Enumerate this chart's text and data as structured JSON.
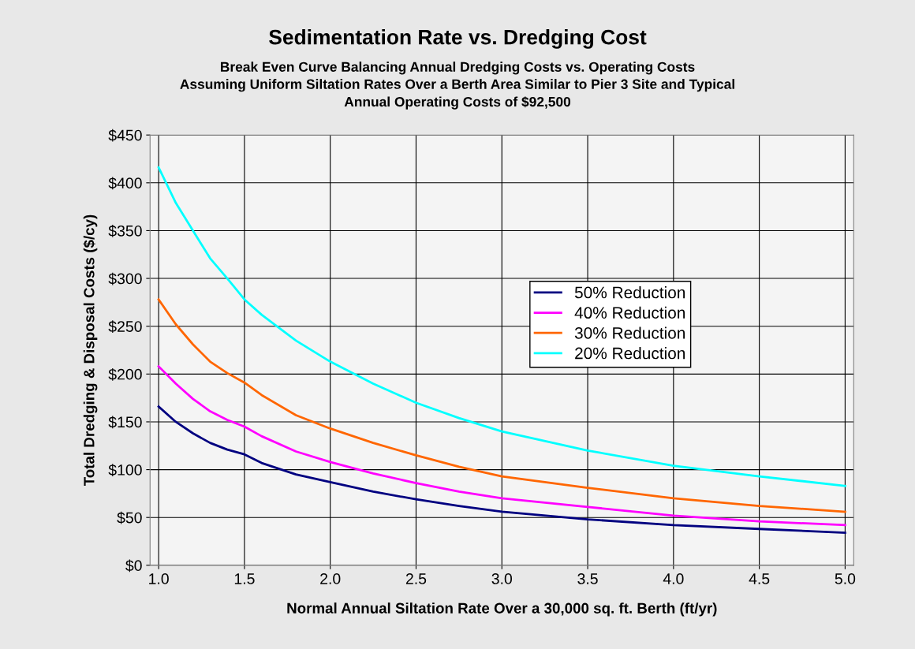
{
  "chart_data": {
    "type": "line",
    "title": "Sedimentation Rate vs. Dredging Cost",
    "subtitle": "Break Even Curve Balancing Annual Dredging Costs vs. Operating Costs\nAssuming Uniform Siltation Rates Over a Berth Area Similar to Pier 3 Site and Typical\nAnnual Operating Costs of $92,500",
    "xlabel": "Normal Annual Siltation Rate Over a 30,000 sq. ft. Berth (ft/yr)",
    "ylabel": "Total Dredging & Disposal Costs ($/cy)",
    "x": [
      1.0,
      1.1,
      1.2,
      1.3,
      1.4,
      1.5,
      1.6,
      1.8,
      2.0,
      2.25,
      2.5,
      2.75,
      3.0,
      3.5,
      4.0,
      4.5,
      5.0
    ],
    "series": [
      {
        "name": "50% Reduction",
        "color": "#000080",
        "values": [
          166,
          150,
          138,
          128,
          121,
          116,
          107,
          95,
          87,
          77,
          69,
          62,
          56,
          48,
          42,
          38,
          34
        ]
      },
      {
        "name": "40% Reduction",
        "color": "#ff00ff",
        "values": [
          208,
          190,
          174,
          161,
          152,
          145,
          135,
          119,
          108,
          96,
          86,
          77,
          70,
          61,
          52,
          46,
          42
        ]
      },
      {
        "name": "30% Reduction",
        "color": "#ff6600",
        "values": [
          278,
          252,
          231,
          213,
          201,
          191,
          178,
          157,
          143,
          128,
          115,
          103,
          93,
          81,
          70,
          62,
          56
        ]
      },
      {
        "name": "20% Reduction",
        "color": "#00ffff",
        "values": [
          416,
          379,
          350,
          321,
          300,
          278,
          262,
          235,
          213,
          190,
          170,
          154,
          140,
          120,
          104,
          93,
          83
        ]
      }
    ],
    "xlim": [
      0.95,
      5.05
    ],
    "xticks": [
      {
        "value": 1,
        "label": "1.0"
      },
      {
        "value": 1.5,
        "label": "1.5"
      },
      {
        "value": 2,
        "label": "2.0"
      },
      {
        "value": 2.5,
        "label": "2.5"
      },
      {
        "value": 3,
        "label": "3.0"
      },
      {
        "value": 3.5,
        "label": "3.5"
      },
      {
        "value": 4,
        "label": "4.0"
      },
      {
        "value": 4.5,
        "label": "4.5"
      },
      {
        "value": 5,
        "label": "5.0"
      }
    ],
    "ylim": [
      0,
      450
    ],
    "yticks": [
      {
        "value": 0,
        "label": "$0"
      },
      {
        "value": 50,
        "label": "$50"
      },
      {
        "value": 100,
        "label": "$100"
      },
      {
        "value": 150,
        "label": "$150"
      },
      {
        "value": 200,
        "label": "$200"
      },
      {
        "value": 250,
        "label": "$250"
      },
      {
        "value": 300,
        "label": "$300"
      },
      {
        "value": 350,
        "label": "$350"
      },
      {
        "value": 400,
        "label": "$400"
      },
      {
        "value": 450,
        "label": "$450"
      }
    ],
    "grid": true,
    "legend": "right",
    "marker": "none",
    "line_style": "solid"
  }
}
